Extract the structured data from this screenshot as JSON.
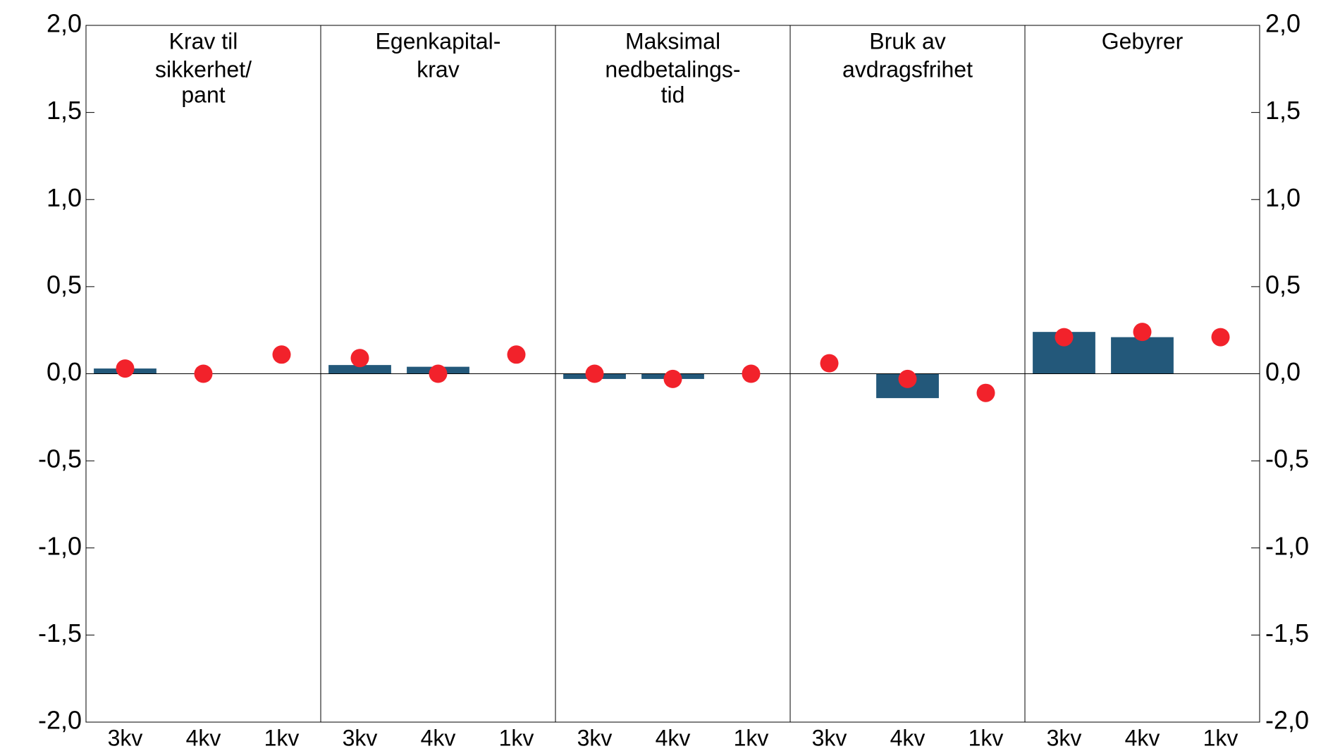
{
  "chart_data": {
    "type": "bar",
    "groups": [
      [
        "Krav til",
        "sikkerhet/",
        "pant"
      ],
      [
        "Egenkapital-",
        "krav"
      ],
      [
        "Maksimal",
        "nedbetalings-",
        "tid"
      ],
      [
        "Bruk av",
        "avdragsfrihet"
      ],
      [
        "Gebyrer"
      ]
    ],
    "categories": [
      "3kv",
      "4kv",
      "1kv",
      "3kv",
      "4kv",
      "1kv",
      "3kv",
      "4kv",
      "1kv",
      "3kv",
      "4kv",
      "1kv",
      "3kv",
      "4kv",
      "1kv"
    ],
    "series": [
      {
        "type": "bar",
        "color": "#23587a",
        "values": [
          0.03,
          null,
          null,
          0.05,
          0.04,
          null,
          -0.03,
          -0.03,
          null,
          null,
          -0.14,
          null,
          0.24,
          0.21,
          null
        ]
      },
      {
        "type": "scatter",
        "color": "#f2222b",
        "values": [
          0.03,
          0.0,
          0.11,
          0.09,
          0.0,
          0.11,
          0.0,
          -0.03,
          0.0,
          0.06,
          -0.03,
          -0.11,
          0.21,
          0.24,
          0.21
        ]
      }
    ],
    "ylim": [
      -2,
      2
    ],
    "yticks": [
      {
        "value": -2,
        "label": "-2,0"
      },
      {
        "value": -1.5,
        "label": "-1,5"
      },
      {
        "value": -1,
        "label": "-1,0"
      },
      {
        "value": -0.5,
        "label": "-0,5"
      },
      {
        "value": 0,
        "label": "0,0"
      },
      {
        "value": 0.5,
        "label": "0,5"
      },
      {
        "value": 1,
        "label": "1,0"
      },
      {
        "value": 1.5,
        "label": "1,5"
      },
      {
        "value": 2,
        "label": "2,0"
      }
    ],
    "y2lim": [
      -2,
      2
    ],
    "y2ticks": [
      {
        "value": -2,
        "label": "-2,0"
      },
      {
        "value": -1.5,
        "label": "-1,5"
      },
      {
        "value": -1,
        "label": "-1,0"
      },
      {
        "value": -0.5,
        "label": "-0,5"
      },
      {
        "value": 0,
        "label": "0,0"
      },
      {
        "value": 0.5,
        "label": "0,5"
      },
      {
        "value": 1,
        "label": "1,0"
      },
      {
        "value": 1.5,
        "label": "1,5"
      },
      {
        "value": 2,
        "label": "2,0"
      }
    ]
  }
}
